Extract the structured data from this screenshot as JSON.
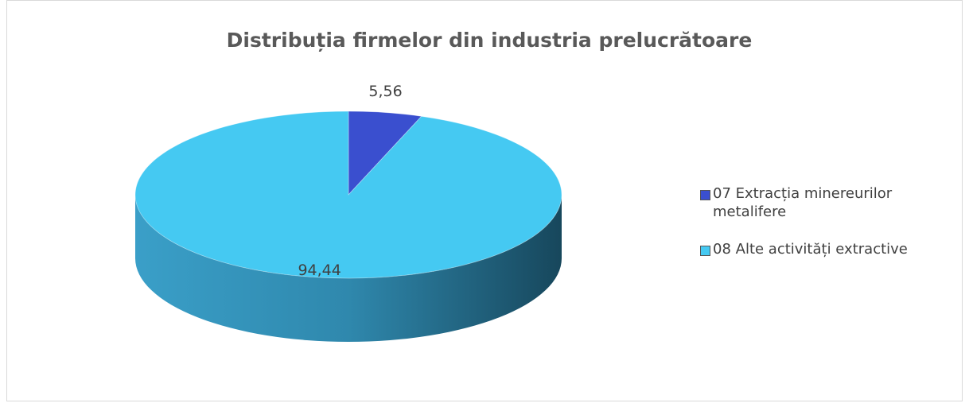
{
  "chart_data": {
    "type": "pie",
    "title": "Distribuția firmelor din industria prelucrătoare",
    "categories": [
      "07 Extracția minereurilor metalifere",
      "08 Alte activități extractive"
    ],
    "values": [
      5.56,
      94.44
    ],
    "value_labels": [
      "5,56",
      "94,44"
    ],
    "colors": [
      "#3a4fcf",
      "#45c9f2"
    ],
    "legend": "right"
  }
}
